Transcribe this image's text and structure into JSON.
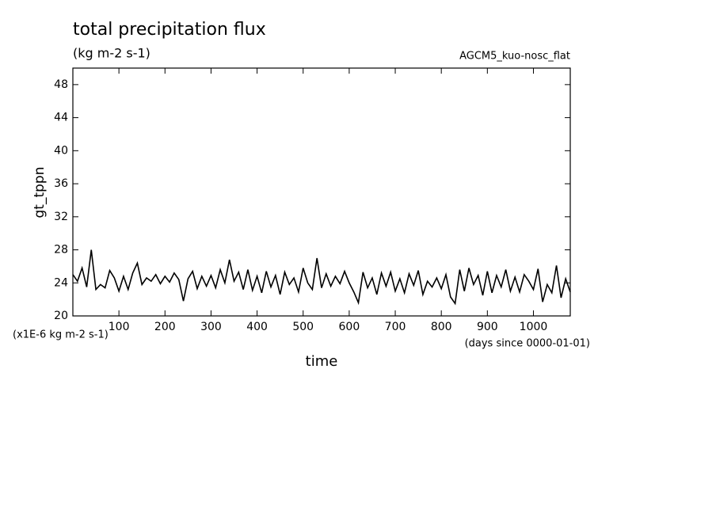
{
  "chart_data": {
    "type": "line",
    "title": "total precipitation flux",
    "subtitle": "(kg m-2 s-1)",
    "annotation": "AGCM5_kuo-nosc_flat",
    "y_label": "gt_tppn",
    "x_label": "time",
    "y_unit_note": "(x1E-6 kg m-2 s-1)",
    "x_unit_note": "(days since 0000-01-01)",
    "xlim": [
      0,
      1080
    ],
    "ylim": [
      20,
      50
    ],
    "xticks": [
      100,
      200,
      300,
      400,
      500,
      600,
      700,
      800,
      900,
      1000
    ],
    "yticks": [
      20,
      24,
      28,
      32,
      36,
      40,
      44,
      48
    ],
    "color": "#000000",
    "series": [
      {
        "name": "gt_tppn",
        "color": "#000000",
        "x": [
          0,
          10,
          20,
          30,
          40,
          50,
          60,
          70,
          80,
          90,
          100,
          110,
          120,
          130,
          140,
          150,
          160,
          170,
          180,
          190,
          200,
          210,
          220,
          230,
          240,
          250,
          260,
          270,
          280,
          290,
          300,
          310,
          320,
          330,
          340,
          350,
          360,
          370,
          380,
          390,
          400,
          410,
          420,
          430,
          440,
          450,
          460,
          470,
          480,
          490,
          500,
          510,
          520,
          530,
          540,
          550,
          560,
          570,
          580,
          590,
          600,
          610,
          620,
          630,
          640,
          650,
          660,
          670,
          680,
          690,
          700,
          710,
          720,
          730,
          740,
          750,
          760,
          770,
          780,
          790,
          800,
          810,
          820,
          830,
          840,
          850,
          860,
          870,
          880,
          890,
          900,
          910,
          920,
          930,
          940,
          950,
          960,
          970,
          980,
          990,
          1000,
          1010,
          1020,
          1030,
          1040,
          1050,
          1060,
          1070,
          1080
        ],
        "values": [
          25,
          24.2,
          25.8,
          23.5,
          28,
          23.2,
          23.8,
          23.4,
          25.5,
          24.6,
          23,
          24.8,
          23.2,
          25.2,
          26.4,
          23.8,
          24.6,
          24.2,
          25,
          23.9,
          24.8,
          24.1,
          25.2,
          24.4,
          21.8,
          24.5,
          25.4,
          23.3,
          24.8,
          23.6,
          24.9,
          23.4,
          25.6,
          24,
          26.8,
          24.2,
          25.3,
          23.2,
          25.6,
          23.1,
          24.8,
          22.8,
          25.4,
          23.5,
          24.9,
          22.6,
          25.3,
          23.8,
          24.6,
          22.9,
          25.8,
          24,
          23.2,
          27,
          23.4,
          25.1,
          23.6,
          24.8,
          23.9,
          25.4,
          24,
          22.9,
          21.6,
          25.3,
          23.4,
          24.6,
          22.6,
          25.2,
          23.6,
          25.3,
          23,
          24.5,
          22.8,
          25.1,
          23.7,
          25.5,
          22.6,
          24.2,
          23.5,
          24.6,
          23.3,
          25,
          22.3,
          21.5,
          25.6,
          23,
          25.8,
          23.8,
          24.9,
          22.5,
          25.4,
          22.8,
          24.9,
          23.5,
          25.6,
          23,
          24.7,
          22.9,
          25,
          24.2,
          23.2,
          25.7,
          21.7,
          23.8,
          22.8,
          26.1,
          22.2,
          24.5,
          22.9
        ]
      }
    ]
  }
}
